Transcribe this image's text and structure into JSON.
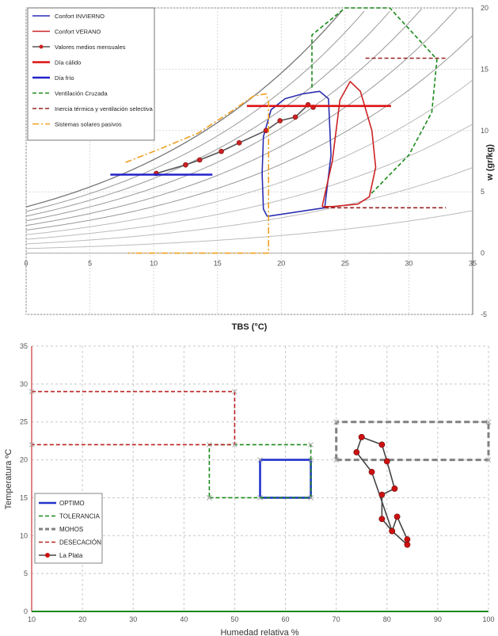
{
  "colors": {
    "invierno": "#2b2fb0",
    "verano": "#cc2222",
    "medios": "#555555",
    "medios_marker": "#cc2222",
    "calido": "#dd1111",
    "frio": "#2222cc",
    "ventilacion": "#1a8a1a",
    "inercia": "#992222",
    "solares": "#f0a020",
    "optimo": "#2233cc",
    "tolerancia": "#1a8a1a",
    "mohos": "#808080",
    "desecacion": "#bb2222",
    "laplata": "#444444",
    "laplata_marker": "#cc1111"
  },
  "chart_data": [
    {
      "type": "line",
      "subtype": "psychrometric",
      "xlabel": "TBS (°C)",
      "ylabel": "w (gr/kg)",
      "xlim": [
        0,
        35
      ],
      "ylim": [
        -5,
        20
      ],
      "xticks": [
        0,
        5,
        10,
        15,
        20,
        25,
        30,
        35
      ],
      "yticks": [
        -5,
        0,
        5,
        10,
        15,
        20
      ],
      "grid": true,
      "legend_position": "top-left",
      "rh_curves": [
        0.1,
        0.2,
        0.3,
        0.4,
        0.5,
        0.6,
        0.7,
        0.8,
        0.9,
        1.0
      ],
      "series": [
        {
          "name": "Confort INVIERNO",
          "style": "solid",
          "color_key": "invierno",
          "x": [
            18.9,
            18.6,
            18.5,
            18.6,
            19.2,
            20.3,
            21.7,
            23.0,
            23.7,
            23.9,
            23.4,
            18.9
          ],
          "y": [
            3.0,
            3.6,
            6.5,
            9.5,
            11.7,
            12.6,
            13.0,
            13.2,
            12.6,
            8.0,
            3.7,
            3.0
          ]
        },
        {
          "name": "Confort VERANO",
          "style": "solid",
          "color_key": "verano",
          "x": [
            23.2,
            24.0,
            24.6,
            25.4,
            26.2,
            27.1,
            27.4,
            26.9,
            26.0,
            24.0,
            23.2
          ],
          "y": [
            3.8,
            7.5,
            12.5,
            14.0,
            13.2,
            10.0,
            7.0,
            4.6,
            4.0,
            3.8,
            3.8
          ]
        },
        {
          "name": "Valores medios mensuales",
          "style": "solid-marker",
          "color_key": "medios",
          "x": [
            10.2,
            12.5,
            13.6,
            15.3,
            16.7,
            18.8,
            19.9,
            21.1,
            22.1,
            22.5
          ],
          "y": [
            6.5,
            7.2,
            7.6,
            8.3,
            9.0,
            10.0,
            10.8,
            11.1,
            12.1,
            11.9
          ]
        },
        {
          "name": "Día cálido",
          "style": "solid-thick",
          "color_key": "calido",
          "x": [
            17.3,
            28.6
          ],
          "y": [
            12.0,
            12.0
          ]
        },
        {
          "name": "Día frío",
          "style": "solid-thick",
          "color_key": "frio",
          "x": [
            6.6,
            14.6
          ],
          "y": [
            6.4,
            6.4
          ]
        },
        {
          "name": "Ventilación Cruzada",
          "style": "dashed",
          "color_key": "ventilacion",
          "x": [
            22.4,
            22.4,
            25.0,
            28.5,
            32.2,
            31.8,
            30.0,
            27.0
          ],
          "y": [
            13.5,
            17.8,
            20.0,
            20.0,
            15.8,
            11.5,
            8.0,
            4.8
          ]
        },
        {
          "name": "Inercia térmica y ventilación selectiva",
          "style": "dashed",
          "color_key": "inercia",
          "segments": [
            {
              "x": [
                26.6,
                32.9
              ],
              "y": [
                15.9,
                15.9
              ]
            },
            {
              "x": [
                23.4,
                32.9
              ],
              "y": [
                3.7,
                3.7
              ]
            }
          ]
        },
        {
          "name": "Sistemas solares pasivos",
          "style": "dashdot",
          "color_key": "solares",
          "x": [
            7.8,
            10.5,
            13.5,
            16.0,
            17.8,
            18.8,
            19.0,
            19.0,
            8.0
          ],
          "y": [
            7.4,
            8.5,
            9.8,
            11.5,
            12.8,
            13.0,
            12.3,
            0.0,
            0.0
          ]
        }
      ]
    },
    {
      "type": "line",
      "xlabel": "Humedad relativa %",
      "ylabel": "Temperatura ºC",
      "xlim": [
        10,
        100
      ],
      "ylim": [
        0,
        35
      ],
      "xticks": [
        10,
        20,
        30,
        40,
        50,
        60,
        70,
        80,
        90,
        100
      ],
      "yticks": [
        0,
        5,
        10,
        15,
        20,
        25,
        30,
        35
      ],
      "grid": true,
      "legend_position": "bottom-left",
      "series": [
        {
          "name": "OPTIMO",
          "style": "solid-thick",
          "color_key": "optimo",
          "x": [
            55,
            65,
            65,
            55,
            55
          ],
          "y": [
            15,
            15,
            20,
            20,
            15
          ]
        },
        {
          "name": "TOLERANCIA",
          "style": "dashed",
          "color_key": "tolerancia",
          "x": [
            45,
            65,
            65,
            45,
            45
          ],
          "y": [
            15,
            15,
            22,
            22,
            15
          ]
        },
        {
          "name": "MOHOS",
          "style": "dashed-thick",
          "color_key": "mohos",
          "x": [
            70,
            100,
            100,
            70,
            70
          ],
          "y": [
            20,
            20,
            25,
            25,
            20
          ]
        },
        {
          "name": "DESECACIÓN",
          "style": "dashed",
          "color_key": "desecacion",
          "segments": [
            {
              "x": [
                10,
                50,
                50,
                10
              ],
              "y": [
                29,
                29,
                22,
                22
              ]
            }
          ]
        },
        {
          "name": "La Plata",
          "style": "solid-marker",
          "color_key": "laplata",
          "x": [
            75,
            79,
            80,
            81.5,
            79,
            79,
            81,
            82,
            84,
            84,
            81,
            77,
            74,
            75
          ],
          "y": [
            23,
            22,
            19.8,
            16.2,
            15.4,
            12.2,
            10.6,
            12.5,
            9.5,
            8.8,
            10.6,
            18.4,
            21,
            23
          ]
        }
      ]
    }
  ]
}
